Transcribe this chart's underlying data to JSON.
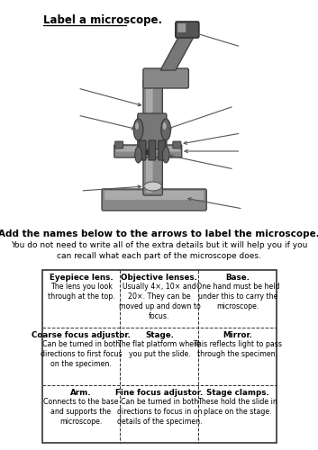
{
  "title": "Label a microscope.",
  "instruction_bold": "Add the names below to the arrows to label the microscope.",
  "instruction_normal": "You do not need to write all of the extra details but it will help you if you\ncan recall what each part of the microscope does.",
  "table": [
    [
      {
        "bold": "Eyepiece lens.",
        "normal": "The lens you look\nthrough at the top."
      },
      {
        "bold": "Objective lenses.",
        "normal": "Usually 4×, 10× and\n20×. They can be\nmoved up and down to\nfocus."
      },
      {
        "bold": "Base.",
        "normal": "One hand must be held\nunder this to carry the\nmicroscope."
      }
    ],
    [
      {
        "bold": "Coarse focus adjustor.",
        "normal": "Can be turned in both\ndirections to first focus\non the specimen."
      },
      {
        "bold": "Stage.",
        "normal": "The flat platform where\nyou put the slide."
      },
      {
        "bold": "Mirror.",
        "normal": "This reflects light to pass\nthrough the specimen."
      }
    ],
    [
      {
        "bold": "Arm.",
        "normal": "Connects to the base\nand supports the\nmicroscope."
      },
      {
        "bold": "Fine focus adjustor.",
        "normal": "Can be turned in both\ndirections to focus in on\ndetails of the specimen."
      },
      {
        "bold": "Stage clamps.",
        "normal": "These hold the slide in\nplace on the stage."
      }
    ]
  ],
  "bg_color": "#ffffff",
  "text_color": "#000000",
  "border_color": "#333333"
}
